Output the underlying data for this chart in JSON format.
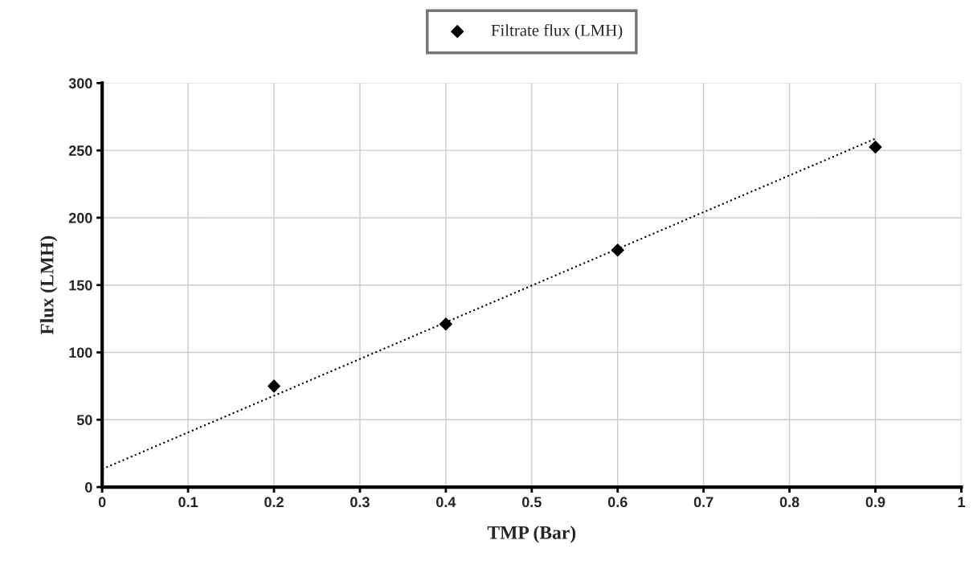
{
  "chart_data": {
    "type": "scatter",
    "xlabel": "TMP (Bar)",
    "ylabel": "Flux (LMH)",
    "x": [
      0.2,
      0.4,
      0.6,
      0.9
    ],
    "series": [
      {
        "name": "Filtrate flux (LMH)",
        "color": "#000000",
        "values": [
          75,
          121,
          176,
          252.5
        ],
        "marker": "diamond"
      },
      {
        "type": "line",
        "color": "#000000",
        "x": [
          0,
          0.9
        ],
        "values": [
          13.3,
          258.7
        ],
        "line_style": "dotted",
        "marker": "none"
      }
    ],
    "xlim": [
      0,
      1
    ],
    "xticks": [
      0,
      0.1,
      0.2,
      0.3,
      0.4,
      0.5,
      0.6,
      0.7,
      0.8,
      0.9,
      1
    ],
    "ylim": [
      0,
      300
    ],
    "yticks": [
      0,
      50,
      100,
      150,
      200,
      250,
      300
    ],
    "grid": true,
    "legend": "top"
  }
}
